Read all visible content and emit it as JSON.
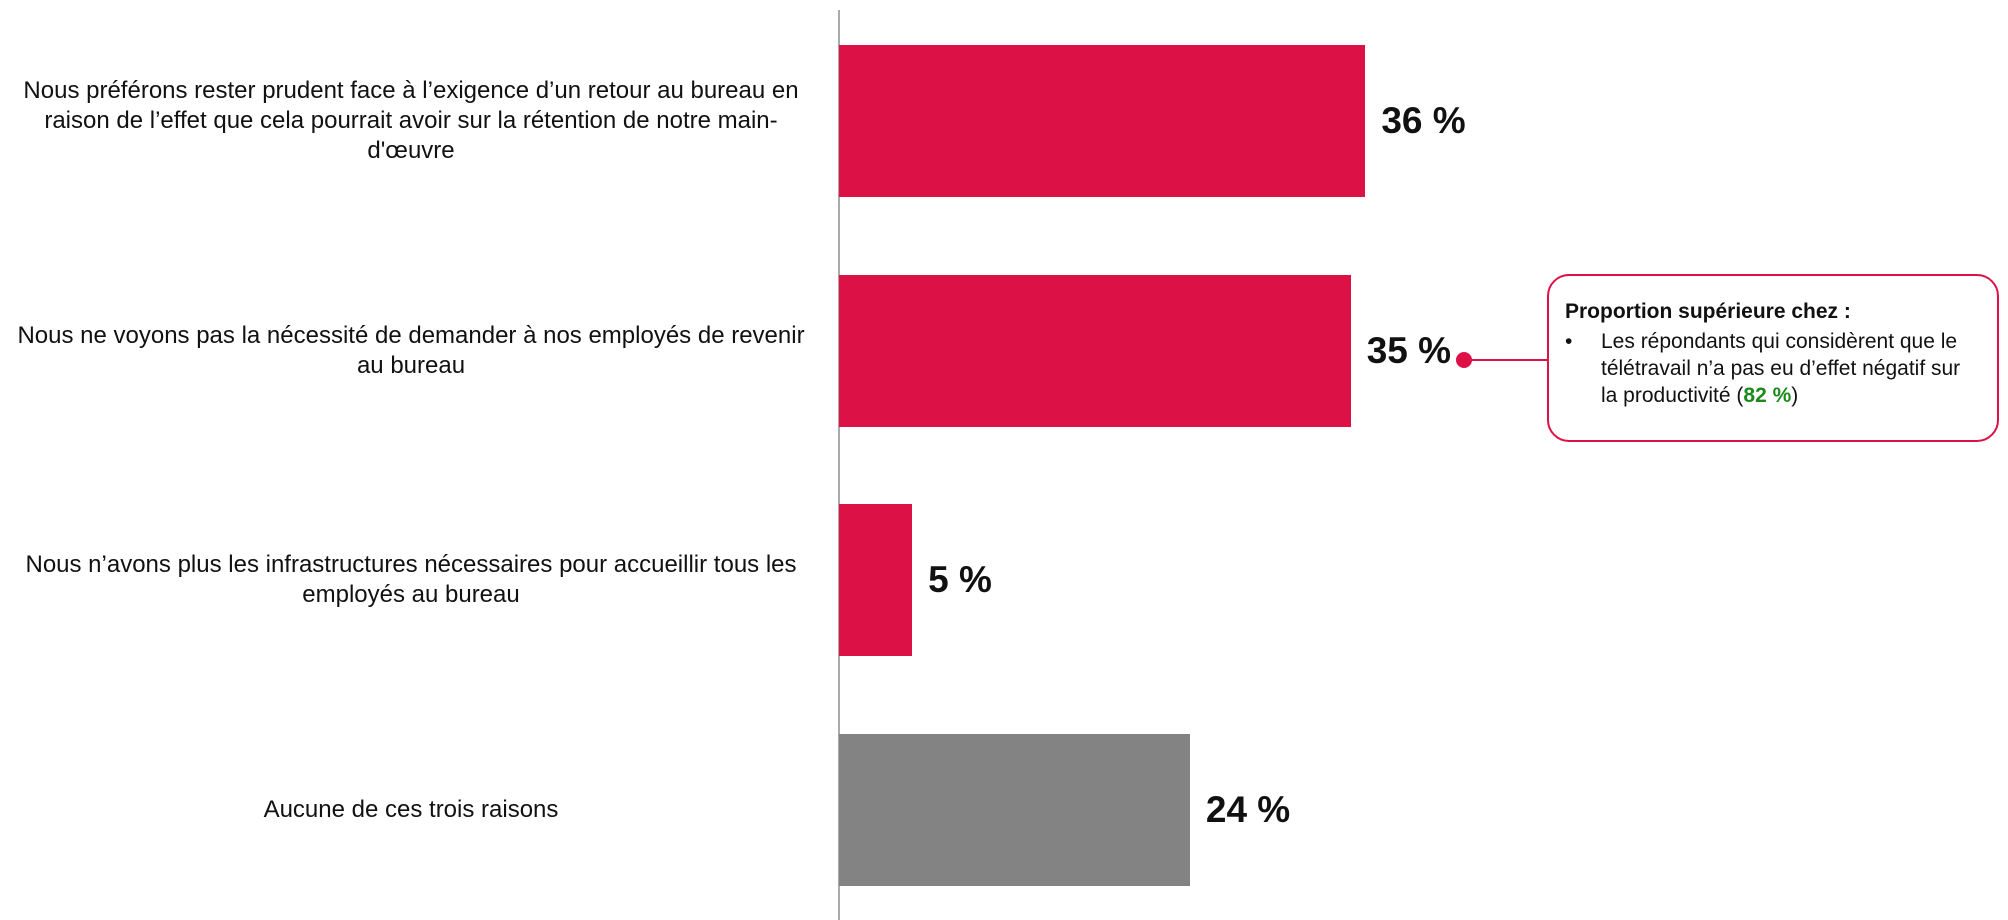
{
  "chart_data": {
    "type": "bar",
    "orientation": "horizontal",
    "categories": [
      "Nous préférons rester prudent face à l’exigence d’un retour au bureau en raison de l’effet que cela pourrait avoir sur la rétention de notre main-d'œuvre",
      "Nous ne voyons pas la nécessité de demander à nos employés de revenir au bureau",
      "Nous n’avons plus les infrastructures nécessaires pour accueillir tous les employés au bureau",
      "Aucune de ces trois raisons"
    ],
    "values": [
      36,
      35,
      5,
      24
    ],
    "value_labels": [
      "36 %",
      "35 %",
      "5 %",
      "24 %"
    ],
    "colors": [
      "#dc1246",
      "#dc1246",
      "#dc1246",
      "#838383"
    ],
    "annotation": {
      "title": "Proportion supérieure chez :",
      "text": "Les répondants qui considèrent que le télétravail n’a pas eu d’effet négatif sur la productivité (",
      "highlight": "82 %",
      "text_end": ")"
    }
  }
}
